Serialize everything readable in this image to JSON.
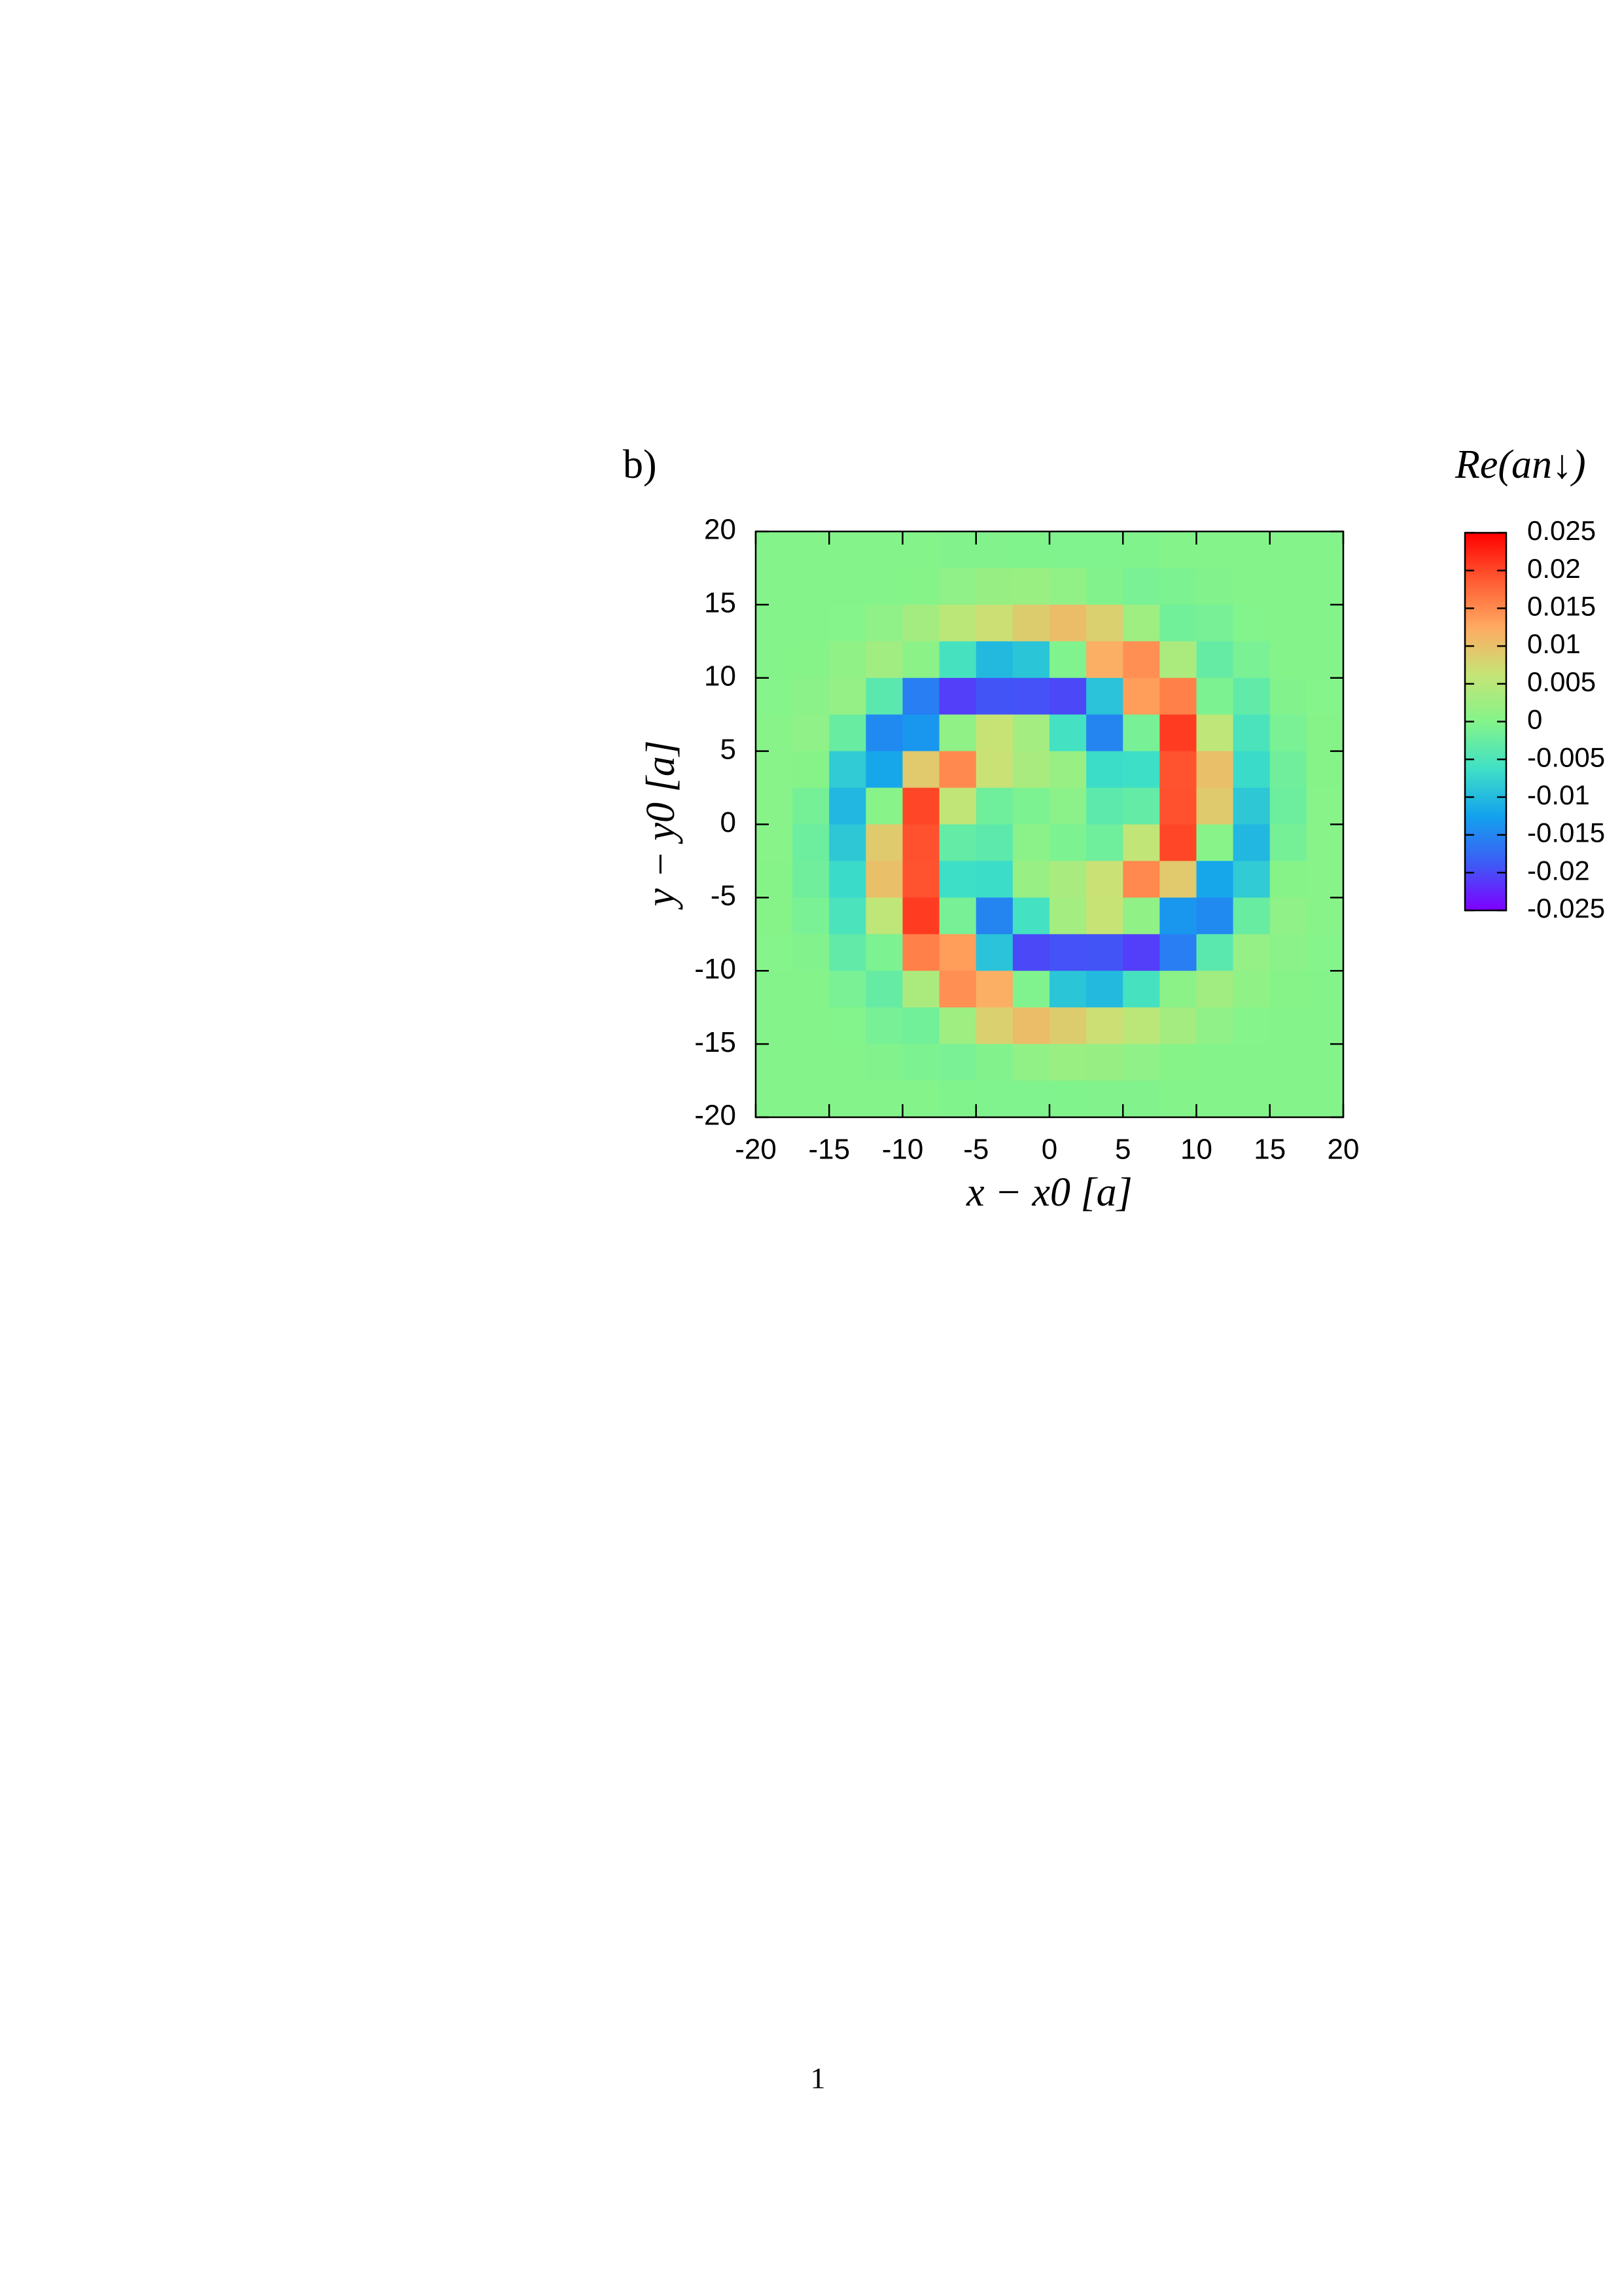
{
  "chart_data": {
    "type": "heatmap",
    "panel_label": "b)",
    "xlabel": "x − x0 [a]",
    "ylabel": "y − y0 [a]",
    "colorbar_label": "Re(an↓)",
    "x": [
      -18.75,
      -16.25,
      -13.75,
      -11.25,
      -8.75,
      -6.25,
      -3.75,
      -1.25,
      1.25,
      3.75,
      6.25,
      8.75,
      11.25,
      13.75,
      16.25,
      18.75
    ],
    "y": [
      18.75,
      16.25,
      13.75,
      11.25,
      8.75,
      6.25,
      3.75,
      1.25,
      -1.25,
      -3.75,
      -6.25,
      -8.75,
      -11.25,
      -13.75,
      -16.25,
      -18.75
    ],
    "z": [
      [
        0,
        0,
        0,
        0,
        0,
        -0.0002,
        -0.0002,
        -0.0003,
        -0.0004,
        -0.0004,
        -0.0003,
        0,
        0,
        0,
        0,
        0
      ],
      [
        0,
        0,
        0,
        0,
        0.0002,
        0.001,
        0.0018,
        0.0021,
        0.0013,
        -0.0002,
        -0.001,
        -0.0006,
        -0.0002,
        0,
        0,
        0
      ],
      [
        0,
        0,
        0.0001,
        0.001,
        0.0031,
        0.0052,
        0.0068,
        0.0088,
        0.0104,
        0.0084,
        0.0025,
        -0.0016,
        -0.0011,
        -0.0001,
        0,
        0
      ],
      [
        0,
        0.0002,
        0.0011,
        0.0027,
        0.0007,
        -0.0056,
        -0.0102,
        -0.009,
        -0.0004,
        0.012,
        0.0146,
        0.0037,
        -0.0027,
        -0.001,
        0,
        0
      ],
      [
        0.0001,
        0.0006,
        0.0016,
        -0.0037,
        -0.0157,
        -0.0208,
        -0.0193,
        -0.0194,
        -0.0201,
        -0.0092,
        0.0135,
        0.0157,
        -0.0007,
        -0.0031,
        -0.0002,
        0.0001
      ],
      [
        0.0003,
        0.001,
        -0.0025,
        -0.0146,
        -0.0135,
        0.0011,
        0.0064,
        0.0029,
        -0.0058,
        -0.0151,
        -0.0011,
        0.0208,
        0.0056,
        -0.0052,
        -0.001,
        0.0002
      ],
      [
        0.0004,
        0.0002,
        -0.0084,
        -0.012,
        0.0092,
        0.0151,
        0.0066,
        0.0035,
        0.0019,
        -0.0066,
        -0.0064,
        0.0193,
        0.0102,
        -0.0068,
        -0.0018,
        0.0002
      ],
      [
        0.0004,
        -0.0013,
        -0.0104,
        0.0004,
        0.0201,
        0.0058,
        -0.0019,
        -0.0006,
        0.0006,
        -0.0035,
        -0.0029,
        0.0194,
        0.009,
        -0.0088,
        -0.0021,
        0.0003
      ],
      [
        0.0003,
        -0.0021,
        -0.0088,
        0.009,
        0.0194,
        -0.0029,
        -0.0035,
        0.0006,
        -0.0006,
        -0.0019,
        0.0058,
        0.0201,
        0.0004,
        -0.0104,
        -0.0013,
        0.0004
      ],
      [
        0.0002,
        -0.0018,
        -0.0068,
        0.0102,
        0.0193,
        -0.0064,
        -0.0066,
        0.0019,
        0.0035,
        0.0066,
        0.0151,
        0.0092,
        -0.012,
        -0.0084,
        0.0002,
        0.0004
      ],
      [
        0.0002,
        -0.001,
        -0.0052,
        0.0056,
        0.0208,
        -0.0011,
        -0.0151,
        -0.0058,
        0.0029,
        0.0064,
        0.0011,
        -0.0135,
        -0.0146,
        -0.0025,
        0.001,
        0.0003
      ],
      [
        0.0001,
        -0.0002,
        -0.0031,
        -0.0007,
        0.0157,
        0.0135,
        -0.0092,
        -0.0201,
        -0.0194,
        -0.0193,
        -0.0208,
        -0.0157,
        -0.0037,
        0.0016,
        0.0006,
        0.0001
      ],
      [
        0,
        0,
        -0.001,
        -0.0027,
        0.0037,
        0.0146,
        0.012,
        -0.0004,
        -0.009,
        -0.0102,
        -0.0056,
        0.0007,
        0.0027,
        0.0011,
        0.0002,
        0
      ],
      [
        0,
        0,
        -0.0001,
        -0.0011,
        -0.0016,
        0.0025,
        0.0084,
        0.0104,
        0.0088,
        0.0068,
        0.0052,
        0.0031,
        0.001,
        0.0001,
        0,
        0
      ],
      [
        0,
        0,
        0,
        -0.0002,
        -0.0006,
        -0.001,
        -0.0002,
        0.0013,
        0.0021,
        0.0018,
        0.001,
        0.0002,
        0,
        0,
        0,
        0
      ],
      [
        0,
        0,
        0,
        0,
        0,
        -0.0003,
        -0.0004,
        -0.0004,
        -0.0003,
        -0.0002,
        -0.0002,
        0,
        0,
        0,
        0,
        0
      ]
    ],
    "xlim": [
      -20,
      20
    ],
    "ylim": [
      -20,
      20
    ],
    "xticks": [
      -20,
      -15,
      -10,
      -5,
      0,
      5,
      10,
      15,
      20
    ],
    "yticks": [
      -20,
      -15,
      -10,
      -5,
      0,
      5,
      10,
      15,
      20
    ],
    "zlim": [
      -0.025,
      0.025
    ],
    "zticks": [
      -0.025,
      -0.02,
      -0.015,
      -0.01,
      -0.005,
      0,
      0.005,
      0.01,
      0.015,
      0.02,
      0.025
    ],
    "colormap": [
      "#7f00ff",
      "#3d5cf6",
      "#12a2ee",
      "#3fe0c6",
      "#84f48a",
      "#c6e476",
      "#ffaa62",
      "#ff5a32",
      "#ff0000"
    ]
  },
  "page_number": "1"
}
